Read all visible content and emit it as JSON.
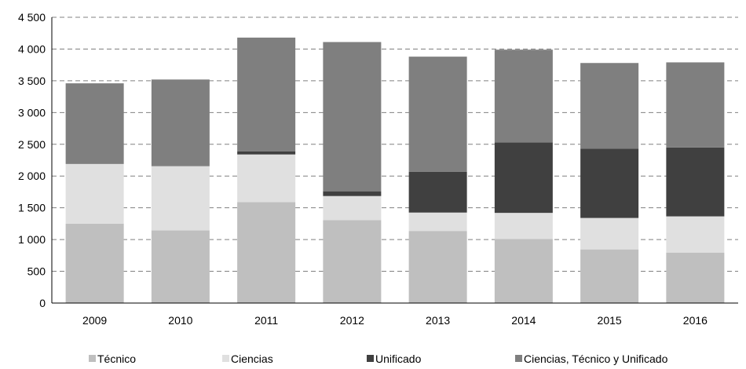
{
  "chart_data": {
    "type": "bar",
    "stacked": true,
    "categories": [
      "2009",
      "2010",
      "2011",
      "2012",
      "2013",
      "2014",
      "2015",
      "2016"
    ],
    "series": [
      {
        "name": "Técnico",
        "color": "#bfbfbf",
        "values": [
          1250,
          1145,
          1590,
          1305,
          1135,
          1010,
          845,
          795
        ]
      },
      {
        "name": "Ciencias",
        "color": "#e0e0e0",
        "values": [
          940,
          1010,
          750,
          380,
          290,
          410,
          495,
          570
        ]
      },
      {
        "name": "Unificado",
        "color": "#404040",
        "values": [
          0,
          0,
          50,
          75,
          640,
          1110,
          1090,
          1085
        ]
      },
      {
        "name": "Ciencias, Técnico y Unificado",
        "color": "#7f7f7f",
        "values": [
          1270,
          1365,
          1790,
          2350,
          1815,
          1460,
          1350,
          1340
        ]
      }
    ],
    "y_ticks": [
      "0",
      "500",
      "1 000",
      "1 500",
      "2 000",
      "2 500",
      "3 000",
      "3 500",
      "4 000",
      "4 500"
    ],
    "ylim": [
      0,
      4500
    ],
    "grid": "horizontal-dashed",
    "legend_position": "bottom"
  }
}
